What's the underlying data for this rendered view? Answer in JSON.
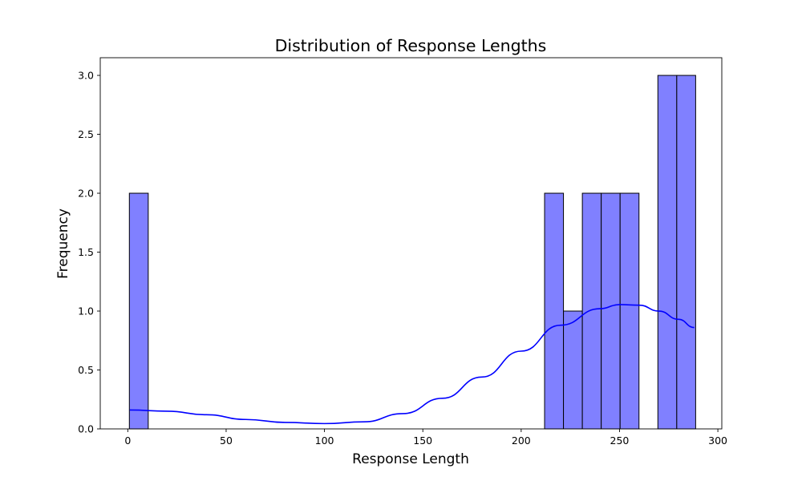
{
  "chart_data": {
    "type": "bar",
    "subtype": "histogram",
    "title": "Distribution of Response Lengths",
    "xlabel": "Response Length",
    "ylabel": "Frequency",
    "xlim": [
      -14,
      302
    ],
    "ylim": [
      0,
      3.15
    ],
    "xticks": [
      0,
      50,
      100,
      150,
      200,
      250,
      300
    ],
    "yticks": [
      0.0,
      0.5,
      1.0,
      1.5,
      2.0,
      2.5,
      3.0
    ],
    "xtick_labels": [
      "0",
      "50",
      "100",
      "150",
      "200",
      "250",
      "300"
    ],
    "ytick_labels": [
      "0.0",
      "0.5",
      "1.0",
      "1.5",
      "2.0",
      "2.5",
      "3.0"
    ],
    "bin_width": 9.6,
    "bins": [
      {
        "start": 0.8,
        "end": 10.4,
        "count": 2
      },
      {
        "start": 211.9,
        "end": 221.5,
        "count": 2
      },
      {
        "start": 221.5,
        "end": 231.1,
        "count": 1
      },
      {
        "start": 231.1,
        "end": 240.7,
        "count": 2
      },
      {
        "start": 240.7,
        "end": 250.3,
        "count": 2
      },
      {
        "start": 250.3,
        "end": 259.9,
        "count": 2
      },
      {
        "start": 269.5,
        "end": 279.1,
        "count": 3
      },
      {
        "start": 279.1,
        "end": 288.7,
        "count": 3
      }
    ],
    "kde": {
      "x": [
        1,
        20,
        40,
        60,
        80,
        100,
        120,
        140,
        160,
        180,
        200,
        220,
        240,
        250,
        260,
        270,
        280,
        288
      ],
      "y": [
        0.16,
        0.15,
        0.12,
        0.08,
        0.055,
        0.045,
        0.06,
        0.13,
        0.26,
        0.44,
        0.66,
        0.88,
        1.02,
        1.055,
        1.05,
        1.0,
        0.93,
        0.86
      ]
    },
    "grid": false,
    "colors": {
      "bar_fill": "#8080ff",
      "bar_edge": "#000000",
      "kde_line": "#0000ff"
    }
  }
}
